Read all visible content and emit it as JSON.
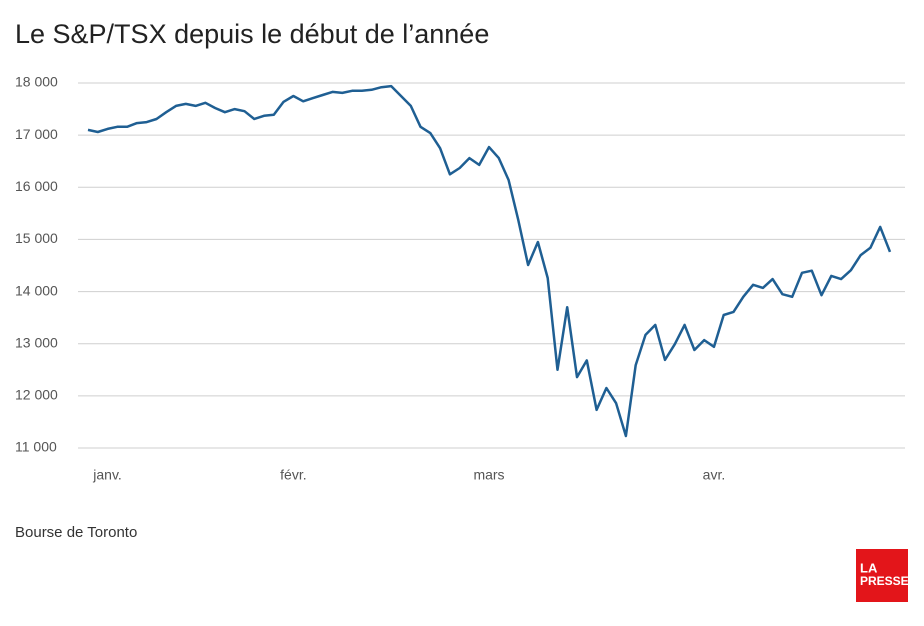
{
  "chart_data": {
    "type": "line",
    "title": "Le S&P/TSX depuis le début de l’année",
    "source": "Bourse de Toronto",
    "categories": [
      null,
      null,
      "janv.",
      null,
      null,
      null,
      null,
      null,
      null,
      null,
      null,
      null,
      null,
      null,
      null,
      null,
      null,
      null,
      null,
      null,
      null,
      "févr.",
      null,
      null,
      null,
      null,
      null,
      null,
      null,
      null,
      null,
      null,
      null,
      null,
      null,
      null,
      null,
      null,
      null,
      null,
      null,
      "mars",
      null,
      null,
      null,
      null,
      null,
      null,
      null,
      null,
      null,
      null,
      null,
      null,
      null,
      null,
      null,
      null,
      null,
      null,
      null,
      null,
      null,
      null,
      "avr.",
      null,
      null,
      null,
      null,
      null,
      null,
      null,
      null,
      null,
      null,
      null,
      null,
      null,
      null,
      null,
      null,
      null,
      null
    ],
    "values": [
      17100,
      17060,
      17120,
      17160,
      17160,
      17230,
      17250,
      17310,
      17440,
      17560,
      17600,
      17560,
      17620,
      17520,
      17440,
      17500,
      17460,
      17310,
      17370,
      17390,
      17640,
      17750,
      17650,
      17710,
      17770,
      17830,
      17810,
      17850,
      17850,
      17870,
      17920,
      17940,
      17750,
      17560,
      17160,
      17040,
      16750,
      16250,
      16370,
      16560,
      16430,
      16770,
      16560,
      16140,
      15370,
      14510,
      14950,
      14260,
      12500,
      13700,
      12360,
      12680,
      11730,
      12150,
      11860,
      11230,
      12590,
      13170,
      13360,
      12690,
      12990,
      13360,
      12880,
      13070,
      12940,
      13550,
      13610,
      13900,
      14130,
      14070,
      14240,
      13950,
      13900,
      14360,
      14400,
      13930,
      14300,
      14240,
      14410,
      14700,
      14840,
      15240,
      14760
    ],
    "color": "#1f5f93",
    "ylim": [
      11000,
      18000
    ],
    "yticks": [
      {
        "value": 11000,
        "label": "11 000"
      },
      {
        "value": 12000,
        "label": "12 000"
      },
      {
        "value": 13000,
        "label": "13 000"
      },
      {
        "value": 14000,
        "label": "14 000"
      },
      {
        "value": 15000,
        "label": "15 000"
      },
      {
        "value": 16000,
        "label": "16 000"
      },
      {
        "value": 17000,
        "label": "17 000"
      },
      {
        "value": 18000,
        "label": "18 000"
      }
    ],
    "grid": true
  },
  "logo": [
    "LA",
    "PRESSE"
  ]
}
